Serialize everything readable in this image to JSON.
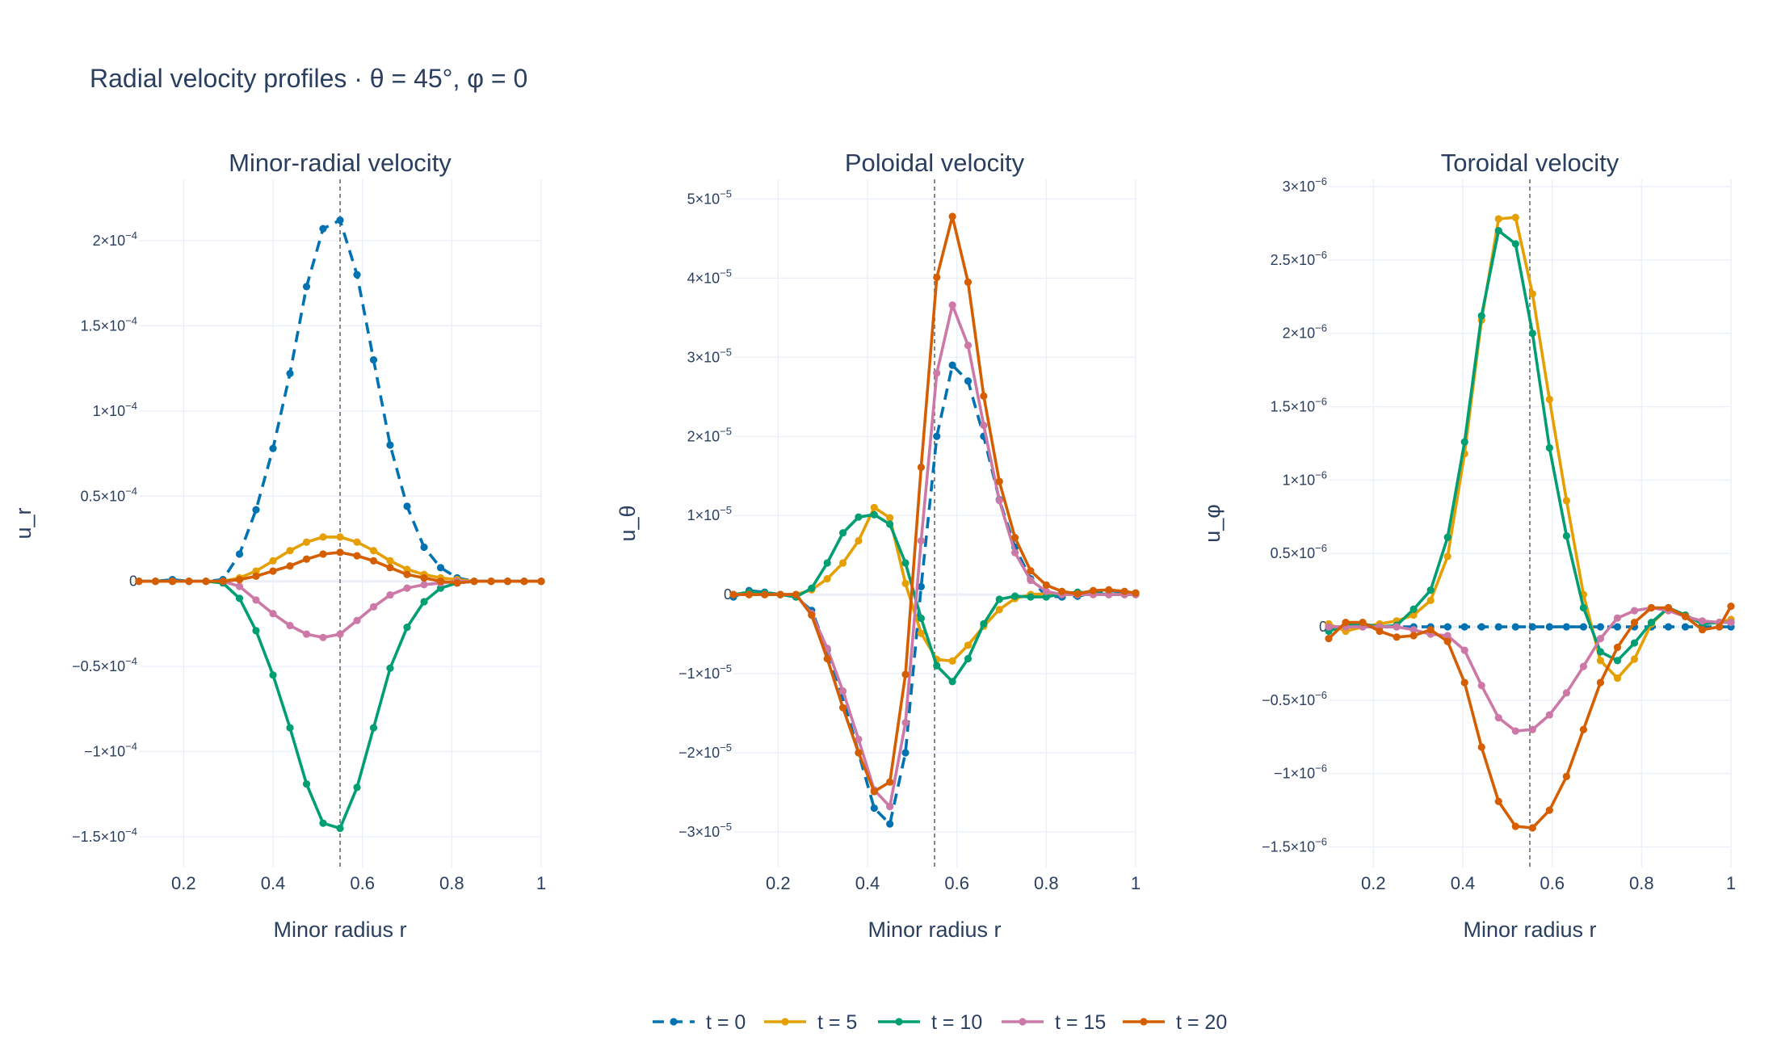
{
  "title": "Radial velocity profiles · θ = 45°, φ = 0",
  "colors": {
    "t0": "#0072B2",
    "t5": "#E69F00",
    "t10": "#009E73",
    "t15": "#CC79A7",
    "t20": "#D55E00",
    "ref_line": "#888888",
    "grid": "#ebf0f8",
    "text": "#2a3f5f"
  },
  "chart_data": [
    {
      "type": "line",
      "title": "Minor-radial velocity",
      "xlabel": "Minor radius r",
      "ylabel": "u_r",
      "xlim": [
        0.1,
        1.0
      ],
      "ylim": [
        -0.000168,
        0.000236
      ],
      "xticks": [
        0.2,
        0.4,
        0.6,
        0.8,
        1.0
      ],
      "xtick_labels": [
        "0.2",
        "0.4",
        "0.6",
        "0.8",
        "1"
      ],
      "yticks": [
        -0.00015,
        -0.0001,
        -5e-05,
        0,
        5e-05,
        0.0001,
        0.00015,
        0.0002
      ],
      "ytick_labels": [
        {
          "m": "−1.5×10",
          "e": "−4"
        },
        {
          "m": "−1×10",
          "e": "−4"
        },
        {
          "m": "−0.5×10",
          "e": "−4"
        },
        {
          "m": "0",
          "e": ""
        },
        {
          "m": "0.5×10",
          "e": "−4"
        },
        {
          "m": "1×10",
          "e": "−4"
        },
        {
          "m": "1.5×10",
          "e": "−4"
        },
        {
          "m": "2×10",
          "e": "−4"
        }
      ],
      "ref_line_x": 0.55,
      "x": [
        0.1,
        0.137,
        0.175,
        0.212,
        0.25,
        0.288,
        0.325,
        0.362,
        0.4,
        0.438,
        0.475,
        0.512,
        0.55,
        0.588,
        0.625,
        0.662,
        0.7,
        0.738,
        0.775,
        0.812,
        0.85,
        0.888,
        0.925,
        0.962,
        1.0
      ],
      "series": [
        {
          "name": "t = 0",
          "dashed": true,
          "values": [
            0,
            0,
            1e-06,
            0,
            0,
            1e-06,
            1.6e-05,
            4.2e-05,
            7.8e-05,
            0.000122,
            0.000173,
            0.000207,
            0.000212,
            0.00018,
            0.00013,
            8e-05,
            4.4e-05,
            2e-05,
            8e-06,
            2e-06,
            0,
            0,
            0,
            0,
            0
          ]
        },
        {
          "name": "t = 5",
          "dashed": false,
          "values": [
            0,
            0,
            0,
            0,
            0,
            0,
            2e-06,
            6e-06,
            1.2e-05,
            1.8e-05,
            2.3e-05,
            2.6e-05,
            2.6e-05,
            2.3e-05,
            1.8e-05,
            1.2e-05,
            7e-06,
            4e-06,
            2e-06,
            1e-06,
            0,
            0,
            0,
            0,
            0
          ]
        },
        {
          "name": "t = 10",
          "dashed": false,
          "values": [
            0,
            0,
            0,
            0,
            0,
            -1e-06,
            -1e-05,
            -2.9e-05,
            -5.5e-05,
            -8.6e-05,
            -0.000119,
            -0.000142,
            -0.000145,
            -0.000121,
            -8.6e-05,
            -5.1e-05,
            -2.7e-05,
            -1.2e-05,
            -4e-06,
            -1e-06,
            0,
            0,
            0,
            0,
            0
          ]
        },
        {
          "name": "t = 15",
          "dashed": false,
          "values": [
            0,
            0,
            0,
            0,
            0,
            0,
            -3e-06,
            -1.1e-05,
            -1.9e-05,
            -2.6e-05,
            -3.1e-05,
            -3.3e-05,
            -3.1e-05,
            -2.3e-05,
            -1.5e-05,
            -8e-06,
            -4e-06,
            -2e-06,
            -1e-06,
            0,
            0,
            0,
            0,
            0,
            0
          ]
        },
        {
          "name": "t = 20",
          "dashed": false,
          "values": [
            0,
            0,
            0,
            0,
            0,
            0,
            1e-06,
            3e-06,
            6e-06,
            9e-06,
            1.3e-05,
            1.6e-05,
            1.7e-05,
            1.5e-05,
            1.2e-05,
            8e-06,
            4e-06,
            2e-06,
            0,
            -1e-06,
            0,
            0,
            0,
            0,
            0
          ]
        }
      ]
    },
    {
      "type": "line",
      "title": "Poloidal velocity",
      "xlabel": "Minor radius r",
      "ylabel": "u_θ",
      "xlim": [
        0.1,
        1.0
      ],
      "ylim": [
        -3.45e-05,
        5.25e-05
      ],
      "xticks": [
        0.2,
        0.4,
        0.6,
        0.8,
        1.0
      ],
      "xtick_labels": [
        "0.2",
        "0.4",
        "0.6",
        "0.8",
        "1"
      ],
      "yticks": [
        -3e-05,
        -2e-05,
        -1e-05,
        0,
        1e-05,
        2e-05,
        3e-05,
        4e-05,
        5e-05
      ],
      "ytick_labels": [
        {
          "m": "−3×10",
          "e": "−5"
        },
        {
          "m": "−2×10",
          "e": "−5"
        },
        {
          "m": "−1×10",
          "e": "−5"
        },
        {
          "m": "0",
          "e": ""
        },
        {
          "m": "1×10",
          "e": "−5"
        },
        {
          "m": "2×10",
          "e": "−5"
        },
        {
          "m": "3×10",
          "e": "−5"
        },
        {
          "m": "4×10",
          "e": "−5"
        },
        {
          "m": "5×10",
          "e": "−5"
        }
      ],
      "ref_line_x": 0.55,
      "x": [
        0.1,
        0.135,
        0.17,
        0.205,
        0.24,
        0.275,
        0.31,
        0.345,
        0.38,
        0.415,
        0.45,
        0.485,
        0.52,
        0.555,
        0.59,
        0.625,
        0.66,
        0.695,
        0.73,
        0.765,
        0.8,
        0.835,
        0.87,
        0.905,
        0.94,
        0.975,
        1.0
      ],
      "series": [
        {
          "name": "t = 0",
          "dashed": true,
          "values": [
            -3e-07,
            5e-07,
            3e-07,
            0,
            -3e-07,
            -2e-06,
            -7e-06,
            -1.3e-05,
            -2e-05,
            -2.7e-05,
            -2.9e-05,
            -2e-05,
            1e-06,
            2e-05,
            2.9e-05,
            2.7e-05,
            2e-05,
            1.2e-05,
            6e-06,
            2e-06,
            -2e-07,
            -3e-07,
            -2e-07,
            2e-07,
            5e-07,
            3e-07,
            2e-07
          ]
        },
        {
          "name": "t = 5",
          "dashed": false,
          "values": [
            0,
            0,
            0,
            0,
            0,
            6e-07,
            2e-06,
            4e-06,
            6.8e-06,
            1.1e-05,
            9.7e-06,
            1.4e-06,
            -4.9e-06,
            -8.2e-06,
            -8.4e-06,
            -6.4e-06,
            -4e-06,
            -1.9e-06,
            -5e-07,
            0,
            1e-07,
            0,
            0,
            0,
            0,
            0,
            0
          ]
        },
        {
          "name": "t = 10",
          "dashed": false,
          "values": [
            0,
            3e-07,
            2e-07,
            0,
            -3e-07,
            8e-07,
            4e-06,
            7.8e-06,
            9.8e-06,
            1.01e-05,
            8.9e-06,
            4e-06,
            -3e-06,
            -9e-06,
            -1.1e-05,
            -8.1e-06,
            -3.7e-06,
            -6e-07,
            -2e-07,
            -3e-07,
            -3e-07,
            1e-07,
            3e-07,
            2e-07,
            0,
            0,
            0
          ]
        },
        {
          "name": "t = 15",
          "dashed": false,
          "values": [
            0,
            0,
            0,
            0,
            0,
            -2.4e-06,
            -6.8e-06,
            -1.22e-05,
            -1.83e-05,
            -2.47e-05,
            -2.68e-05,
            -1.62e-05,
            6.8e-06,
            2.8e-05,
            3.66e-05,
            3.15e-05,
            2.14e-05,
            1.19e-05,
            5.3e-06,
            1.8e-06,
            4e-07,
            0,
            0,
            0,
            0,
            0,
            0
          ]
        },
        {
          "name": "t = 20",
          "dashed": false,
          "values": [
            0,
            0,
            0,
            0,
            0,
            -2.6e-06,
            -8.1e-06,
            -1.43e-05,
            -2e-05,
            -2.49e-05,
            -2.37e-05,
            -1.01e-05,
            1.61e-05,
            4.01e-05,
            4.78e-05,
            3.95e-05,
            2.51e-05,
            1.43e-05,
            7.2e-06,
            3e-06,
            1.2e-06,
            4e-07,
            1e-07,
            5e-07,
            6e-07,
            4e-07,
            2e-07
          ]
        }
      ]
    },
    {
      "type": "line",
      "title": "Toroidal velocity",
      "xlabel": "Minor radius r",
      "ylabel": "u_φ",
      "xlim": [
        0.1,
        1.0
      ],
      "ylim": [
        -1.64e-06,
        3.05e-06
      ],
      "xticks": [
        0.2,
        0.4,
        0.6,
        0.8,
        1.0
      ],
      "xtick_labels": [
        "0.2",
        "0.4",
        "0.6",
        "0.8",
        "1"
      ],
      "yticks": [
        -1.5e-06,
        -1e-06,
        -5e-07,
        0,
        5e-07,
        1e-06,
        1.5e-06,
        2e-06,
        2.5e-06,
        3e-06
      ],
      "ytick_labels": [
        {
          "m": "−1.5×10",
          "e": "−6"
        },
        {
          "m": "−1×10",
          "e": "−6"
        },
        {
          "m": "−0.5×10",
          "e": "−6"
        },
        {
          "m": "0",
          "e": ""
        },
        {
          "m": "0.5×10",
          "e": "−6"
        },
        {
          "m": "1×10",
          "e": "−6"
        },
        {
          "m": "1.5×10",
          "e": "−6"
        },
        {
          "m": "2×10",
          "e": "−6"
        },
        {
          "m": "2.5×10",
          "e": "−6"
        },
        {
          "m": "3×10",
          "e": "−6"
        }
      ],
      "ref_line_x": 0.55,
      "x": [
        0.1,
        0.138,
        0.176,
        0.214,
        0.252,
        0.29,
        0.328,
        0.366,
        0.404,
        0.442,
        0.48,
        0.518,
        0.556,
        0.594,
        0.632,
        0.67,
        0.708,
        0.746,
        0.784,
        0.822,
        0.86,
        0.898,
        0.936,
        0.974,
        1.0
      ],
      "series": [
        {
          "name": "t = 0",
          "dashed": true,
          "values": [
            0,
            0,
            0,
            0,
            0,
            0,
            0,
            0,
            0,
            0,
            0,
            0,
            0,
            0,
            0,
            0,
            0,
            0,
            0,
            0,
            0,
            0,
            0,
            0,
            0
          ]
        },
        {
          "name": "t = 5",
          "dashed": false,
          "values": [
            2e-08,
            -3e-08,
            0,
            2e-08,
            4e-08,
            8e-08,
            1.8e-07,
            4.8e-07,
            1.18e-06,
            2.09e-06,
            2.78e-06,
            2.79e-06,
            2.27e-06,
            1.55e-06,
            8.6e-07,
            2.2e-07,
            -2.3e-07,
            -3.5e-07,
            -2.2e-07,
            2e-08,
            1.3e-07,
            8e-08,
            2e-08,
            3e-08,
            5e-08
          ]
        },
        {
          "name": "t = 10",
          "dashed": false,
          "values": [
            -3e-08,
            1e-08,
            2e-08,
            0,
            1e-08,
            1.2e-07,
            2.5e-07,
            6.1e-07,
            1.26e-06,
            2.12e-06,
            2.7e-06,
            2.61e-06,
            2e-06,
            1.22e-06,
            6.2e-07,
            1.3e-07,
            -1.7e-07,
            -2.3e-07,
            -1.1e-07,
            3e-08,
            1.3e-07,
            8e-08,
            2e-08,
            3e-08,
            3e-08
          ]
        },
        {
          "name": "t = 15",
          "dashed": false,
          "values": [
            0,
            0,
            0,
            0,
            0,
            -2e-08,
            -5e-08,
            -6e-08,
            -1.6e-07,
            -4e-07,
            -6.2e-07,
            -7.1e-07,
            -7e-07,
            -6e-07,
            -4.5e-07,
            -2.7e-07,
            -8e-08,
            6e-08,
            1.1e-07,
            1.3e-07,
            1.1e-07,
            7e-08,
            4e-08,
            3e-08,
            3e-08
          ]
        },
        {
          "name": "t = 20",
          "dashed": false,
          "values": [
            -8e-08,
            3e-08,
            3e-08,
            -3e-08,
            -7e-08,
            -6e-08,
            -2e-08,
            -1e-07,
            -3.8e-07,
            -8.2e-07,
            -1.19e-06,
            -1.36e-06,
            -1.37e-06,
            -1.25e-06,
            -1.02e-06,
            -7e-07,
            -3.8e-07,
            -1.4e-07,
            3e-08,
            1.3e-07,
            1.3e-07,
            7e-08,
            -2e-08,
            0,
            1.4e-07
          ]
        }
      ]
    }
  ]
}
